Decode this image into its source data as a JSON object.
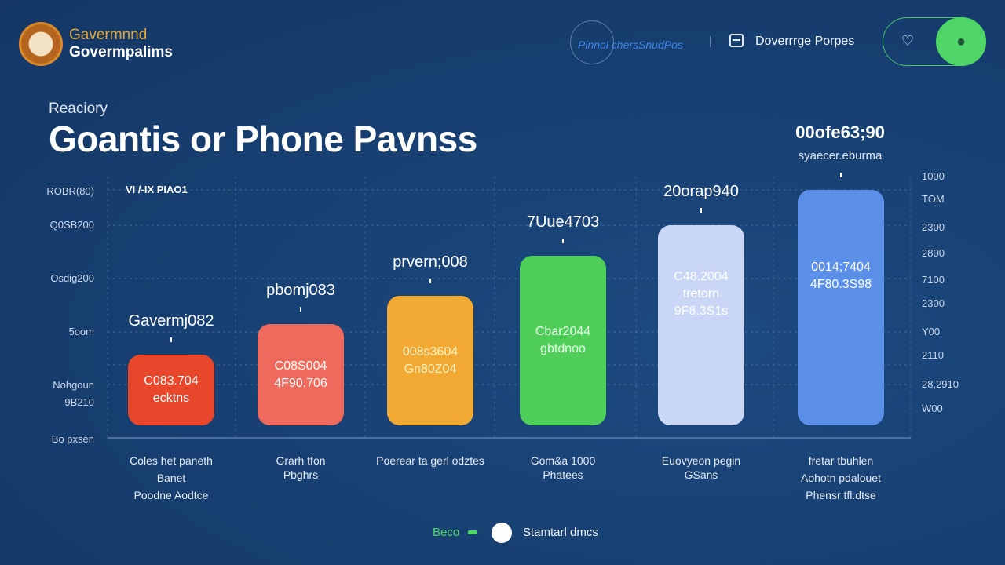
{
  "header": {
    "brand_line1": "Gavermnnd",
    "brand_line2": "Govermpalims",
    "nav_link": "Pinnol chersSnudPos",
    "nav_item": "Doverrrge Porpes",
    "nav_icon": "list-icon",
    "toggle_left_icon": "heart-icon",
    "toggle_right_icon": "user-icon",
    "toggle_state": "on"
  },
  "eyebrow": "Reaciory",
  "title": "Goantis or Phone Pavnss",
  "callout": {
    "value": "00ofe63;90",
    "sub": "syaecer.eburma"
  },
  "legend": [
    {
      "label": "Beco",
      "color": "#4fd568"
    },
    {
      "label": "Stamtarl dmcs",
      "color": "#ffffff"
    }
  ],
  "chart_data": {
    "type": "bar",
    "series_label": "VI /-IX PIAO1",
    "left_ticks": [
      "ROBR(80)",
      "Q0SB200",
      "Osdig200",
      "5oom",
      "Nohgoun",
      "9B210",
      "Bo pxsen"
    ],
    "right_ticks": [
      "1000",
      "TOM",
      "2300",
      "2800",
      "7100",
      "2300",
      "Y00",
      "2110",
      "28,2910",
      "W00"
    ],
    "categories": [
      [
        "Coles het paneth",
        "Banet",
        "Poodne Aodtce"
      ],
      [
        "Grarh tfon",
        "Pbghrs"
      ],
      [
        "Poerear ta gerl odztes"
      ],
      [
        "Gom&a 1000",
        "Phatees"
      ],
      [
        "Euovyeon pegin",
        "GSans"
      ],
      [
        "fretar tbuhlen",
        "Aohotn pdalouet",
        "Phensr:tfl.dtse"
      ]
    ],
    "top_labels": [
      "Gavermj082",
      "pbomj083",
      "prvern;008",
      "7Uue4703",
      "20orap940",
      ""
    ],
    "inner_labels": [
      [
        "C083.704",
        "ecktns"
      ],
      [
        "C08S004",
        "4F90.706"
      ],
      [
        "008s3604",
        "Gn80Z04"
      ],
      [
        "Cbar2044",
        "gbtdnoo"
      ],
      [
        "C48.2004",
        "tretorn",
        "9F8.3S1s"
      ],
      [
        "0014;7404",
        "4F80.3S98"
      ]
    ],
    "values_percent_of_max": [
      30,
      43,
      55,
      72,
      85,
      100
    ],
    "colors": [
      "#e8472b",
      "#ee6a5c",
      "#f2a933",
      "#4fcf59",
      "#c9d6f5",
      "#5b8fe8"
    ],
    "inner_text_colors": [
      "#ffffff",
      "#ffffff",
      "#fff3c4",
      "#eaffea",
      "#ffffff",
      "#ffffff"
    ],
    "grid": true
  }
}
